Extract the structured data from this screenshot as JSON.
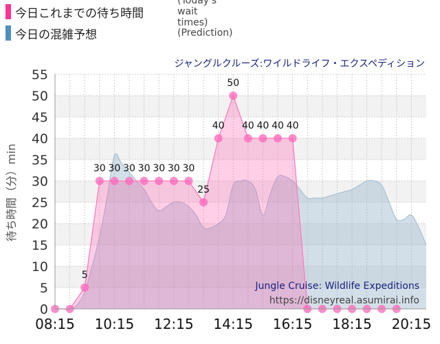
{
  "legend": [
    {
      "label": "今日これまでの待ち時間",
      "sub": "(Today's wait times)",
      "color": "#ff3399"
    },
    {
      "label": "今日の混雑予想",
      "sub": "(Prediction)",
      "color": "#4f8fbf"
    }
  ],
  "chart_data": {
    "type": "line",
    "title": "ジャングルクルーズ:ワイルドライフ・エクスペディション",
    "ylabel": "待ち時間（分）min",
    "xlabel": "",
    "ylim": [
      0,
      55
    ],
    "yticks": [
      0,
      5,
      10,
      15,
      20,
      25,
      30,
      35,
      40,
      45,
      50,
      55
    ],
    "xlim": [
      "08:15",
      "20:45"
    ],
    "xticks": [
      "08:15",
      "10:15",
      "12:15",
      "14:15",
      "16:15",
      "18:15",
      "20:15"
    ],
    "grid": true,
    "series": [
      {
        "name": "今日これまでの待ち時間",
        "color": "#ff3399",
        "x": [
          "08:15",
          "08:45",
          "09:15",
          "09:45",
          "10:15",
          "10:45",
          "11:15",
          "11:45",
          "12:15",
          "12:45",
          "13:15",
          "13:45",
          "14:15",
          "14:45",
          "15:15",
          "15:45",
          "16:15",
          "16:45",
          "17:15",
          "17:45",
          "18:15",
          "18:45",
          "19:15",
          "19:45"
        ],
        "values": [
          0,
          0,
          5,
          30,
          30,
          30,
          30,
          30,
          30,
          30,
          25,
          40,
          50,
          40,
          40,
          40,
          40,
          0,
          0,
          0,
          0,
          0,
          0,
          0
        ]
      },
      {
        "name": "今日の混雑予想",
        "color": "#a8c0d4",
        "x": [
          "08:15",
          "08:30",
          "08:45",
          "09:00",
          "09:15",
          "09:30",
          "09:45",
          "10:00",
          "10:15",
          "10:30",
          "10:45",
          "11:00",
          "11:15",
          "11:30",
          "11:45",
          "12:00",
          "12:15",
          "12:30",
          "12:45",
          "13:00",
          "13:15",
          "13:30",
          "13:45",
          "14:00",
          "14:15",
          "14:30",
          "14:45",
          "15:00",
          "15:15",
          "15:30",
          "15:45",
          "16:00",
          "16:15",
          "16:30",
          "16:45",
          "17:00",
          "17:15",
          "17:30",
          "17:45",
          "18:00",
          "18:15",
          "18:30",
          "18:45",
          "19:00",
          "19:15",
          "19:30",
          "19:45",
          "20:00",
          "20:15",
          "20:30",
          "20:45"
        ],
        "values": [
          0,
          0,
          0,
          1,
          4,
          10,
          17,
          26,
          36,
          34,
          32,
          30,
          28,
          25,
          23,
          24,
          25,
          25,
          24,
          22,
          19,
          19,
          20,
          22,
          29,
          30,
          30,
          28,
          22,
          27,
          31,
          31,
          30,
          28,
          26,
          26,
          26,
          26.5,
          27,
          27.5,
          28,
          29,
          30,
          30,
          29,
          25,
          21,
          21,
          22,
          19,
          15
        ]
      }
    ],
    "annotations": [
      "Jungle Cruise: Wildlife Expeditions",
      "https://disneyreal.asumirai.info"
    ]
  }
}
